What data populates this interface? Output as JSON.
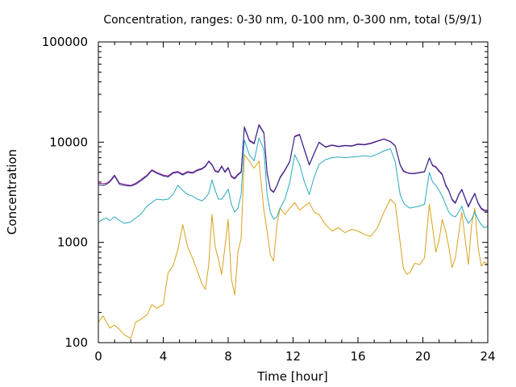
{
  "chart_data": {
    "type": "line",
    "title": "Concentration, ranges: 0-30 nm, 0-100 nm, 0-300 nm, total (5/9/1)",
    "xlabel": "Time [hour]",
    "ylabel": "Concentration",
    "xlim": [
      0,
      24
    ],
    "ylim": [
      100,
      100000
    ],
    "yscale": "log",
    "grid": false,
    "legend": "none",
    "x_ticks": [
      0,
      4,
      8,
      12,
      16,
      20,
      24
    ],
    "x_tick_labels": [
      "0",
      "4",
      "8",
      "12",
      "16",
      "20",
      "24"
    ],
    "y_ticks": [
      100,
      1000,
      10000,
      100000
    ],
    "y_tick_labels": [
      "100",
      "1000",
      "10000",
      "100000"
    ],
    "series": [
      {
        "color": "#d9a21a",
        "x": [
          0,
          0.3,
          0.5,
          0.7,
          1.0,
          1.3,
          1.6,
          2.0,
          2.3,
          2.6,
          3.0,
          3.3,
          3.6,
          4.0,
          4.3,
          4.6,
          4.9,
          5.2,
          5.5,
          5.8,
          6.1,
          6.4,
          6.6,
          6.8,
          7.0,
          7.2,
          7.4,
          7.6,
          7.8,
          8.0,
          8.2,
          8.4,
          8.6,
          8.8,
          9.0,
          9.3,
          9.6,
          9.9,
          10.2,
          10.4,
          10.6,
          10.8,
          11.0,
          11.2,
          11.5,
          11.8,
          12.1,
          12.4,
          12.7,
          13.0,
          13.3,
          13.6,
          14.0,
          14.4,
          14.8,
          15.2,
          15.6,
          16.0,
          16.4,
          16.8,
          17.2,
          17.6,
          18.0,
          18.3,
          18.6,
          18.8,
          19.0,
          19.2,
          19.5,
          19.8,
          20.1,
          20.4,
          20.6,
          20.8,
          21.0,
          21.2,
          21.4,
          21.6,
          21.8,
          22.0,
          22.2,
          22.4,
          22.6,
          22.8,
          23.0,
          23.2,
          23.4,
          23.6,
          23.8,
          24.0
        ],
        "values": [
          160,
          185,
          160,
          140,
          150,
          135,
          120,
          110,
          160,
          170,
          190,
          240,
          220,
          240,
          500,
          580,
          850,
          1500,
          900,
          700,
          520,
          380,
          340,
          600,
          1900,
          900,
          680,
          480,
          900,
          1700,
          430,
          300,
          800,
          1100,
          7500,
          6500,
          5500,
          6500,
          2100,
          1300,
          750,
          650,
          1500,
          2200,
          1900,
          2200,
          2500,
          2100,
          2300,
          2500,
          2000,
          1900,
          1500,
          1300,
          1400,
          1250,
          1350,
          1300,
          1200,
          1150,
          1400,
          2000,
          2700,
          2400,
          1000,
          550,
          480,
          500,
          620,
          600,
          700,
          2400,
          1400,
          800,
          1050,
          1700,
          1300,
          900,
          560,
          700,
          1200,
          2000,
          1100,
          600,
          1500,
          2200,
          900,
          580,
          640,
          600
        ]
      },
      {
        "color": "#2aa8c0",
        "x": [
          0,
          0.3,
          0.5,
          0.7,
          1.0,
          1.3,
          1.6,
          2.0,
          2.3,
          2.6,
          3.0,
          3.3,
          3.6,
          4.0,
          4.3,
          4.6,
          4.9,
          5.2,
          5.5,
          5.8,
          6.1,
          6.4,
          6.6,
          6.8,
          7.0,
          7.2,
          7.4,
          7.6,
          7.8,
          8.0,
          8.2,
          8.4,
          8.6,
          8.8,
          9.0,
          9.3,
          9.6,
          9.9,
          10.2,
          10.4,
          10.6,
          10.8,
          11.0,
          11.2,
          11.5,
          11.8,
          12.1,
          12.4,
          12.7,
          13.0,
          13.3,
          13.6,
          14.0,
          14.4,
          14.8,
          15.2,
          15.6,
          16.0,
          16.4,
          16.8,
          17.2,
          17.6,
          18.0,
          18.3,
          18.6,
          18.8,
          19.0,
          19.2,
          19.5,
          19.8,
          20.1,
          20.4,
          20.6,
          20.8,
          21.0,
          21.2,
          21.4,
          21.6,
          21.8,
          22.0,
          22.2,
          22.4,
          22.6,
          22.8,
          23.0,
          23.2,
          23.4,
          23.6,
          23.8,
          24.0
        ],
        "values": [
          1600,
          1700,
          1750,
          1650,
          1800,
          1650,
          1550,
          1600,
          1750,
          1900,
          2300,
          2500,
          2700,
          2650,
          2700,
          3000,
          3700,
          3300,
          3000,
          2900,
          2700,
          2600,
          2800,
          3100,
          4200,
          3300,
          2700,
          2700,
          3000,
          3400,
          2400,
          2000,
          2200,
          3000,
          10500,
          7500,
          6500,
          11000,
          8500,
          3000,
          2000,
          1700,
          1800,
          2200,
          2700,
          4000,
          7500,
          6000,
          4000,
          3000,
          4500,
          6000,
          6700,
          7000,
          7100,
          7000,
          7100,
          7200,
          7300,
          7200,
          7600,
          8200,
          8600,
          6300,
          3000,
          2500,
          2300,
          2200,
          2250,
          2300,
          2400,
          5000,
          4000,
          3700,
          3300,
          2900,
          2400,
          2000,
          1850,
          1800,
          2000,
          2300,
          1800,
          1550,
          1700,
          2000,
          1700,
          1500,
          1400,
          1450
        ]
      },
      {
        "color": "#8b1a8b",
        "x": [
          0,
          0.3,
          0.5,
          0.7,
          1.0,
          1.3,
          1.6,
          2.0,
          2.3,
          2.6,
          3.0,
          3.3,
          3.6,
          4.0,
          4.3,
          4.6,
          4.9,
          5.2,
          5.5,
          5.8,
          6.1,
          6.4,
          6.6,
          6.8,
          7.0,
          7.2,
          7.4,
          7.6,
          7.8,
          8.0,
          8.2,
          8.4,
          8.6,
          8.8,
          9.0,
          9.3,
          9.6,
          9.9,
          10.2,
          10.4,
          10.6,
          10.8,
          11.0,
          11.2,
          11.5,
          11.8,
          12.1,
          12.4,
          12.7,
          13.0,
          13.3,
          13.6,
          14.0,
          14.4,
          14.8,
          15.2,
          15.6,
          16.0,
          16.4,
          16.8,
          17.2,
          17.6,
          18.0,
          18.3,
          18.6,
          18.8,
          19.0,
          19.2,
          19.5,
          19.8,
          20.1,
          20.4,
          20.6,
          20.8,
          21.0,
          21.2,
          21.4,
          21.6,
          21.8,
          22.0,
          22.2,
          22.4,
          22.6,
          22.8,
          23.0,
          23.2,
          23.4,
          23.6,
          23.8,
          24.0
        ],
        "values": [
          3900,
          3850,
          3900,
          4100,
          4700,
          3900,
          3800,
          3700,
          3900,
          4200,
          4700,
          5300,
          5000,
          4700,
          4600,
          5000,
          5100,
          4800,
          5100,
          5000,
          5300,
          5500,
          5800,
          6500,
          6000,
          5200,
          5100,
          5800,
          5100,
          5600,
          4600,
          4400,
          4800,
          5100,
          14300,
          10500,
          9800,
          15000,
          12500,
          5000,
          3400,
          3200,
          3700,
          4500,
          5300,
          6500,
          11500,
          12000,
          8500,
          6000,
          7800,
          10000,
          9000,
          9400,
          9100,
          9300,
          9200,
          9600,
          9500,
          9800,
          10300,
          10800,
          10200,
          9200,
          6000,
          5200,
          5000,
          4900,
          4900,
          5000,
          5100,
          7000,
          5900,
          5700,
          5200,
          4800,
          3800,
          3300,
          2700,
          2500,
          3000,
          3400,
          2800,
          2300,
          2700,
          3100,
          2500,
          2200,
          2100,
          2100
        ]
      },
      {
        "color": "#2a2a8c",
        "x": [
          0,
          0.3,
          0.5,
          0.7,
          1.0,
          1.3,
          1.6,
          2.0,
          2.3,
          2.6,
          3.0,
          3.3,
          3.6,
          4.0,
          4.3,
          4.6,
          4.9,
          5.2,
          5.5,
          5.8,
          6.1,
          6.4,
          6.6,
          6.8,
          7.0,
          7.2,
          7.4,
          7.6,
          7.8,
          8.0,
          8.2,
          8.4,
          8.6,
          8.8,
          9.0,
          9.3,
          9.6,
          9.9,
          10.2,
          10.4,
          10.6,
          10.8,
          11.0,
          11.2,
          11.5,
          11.8,
          12.1,
          12.4,
          12.7,
          13.0,
          13.3,
          13.6,
          14.0,
          14.4,
          14.8,
          15.2,
          15.6,
          16.0,
          16.4,
          16.8,
          17.2,
          17.6,
          18.0,
          18.3,
          18.6,
          18.8,
          19.0,
          19.2,
          19.5,
          19.8,
          20.1,
          20.4,
          20.6,
          20.8,
          21.0,
          21.2,
          21.4,
          21.6,
          21.8,
          22.0,
          22.2,
          22.4,
          22.6,
          22.8,
          23.0,
          23.2,
          23.4,
          23.6,
          23.8,
          24.0
        ],
        "values": [
          3750,
          3700,
          3800,
          4000,
          4600,
          3800,
          3700,
          3650,
          3800,
          4100,
          4600,
          5200,
          4900,
          4600,
          4500,
          4900,
          5000,
          4700,
          5000,
          4900,
          5200,
          5400,
          5700,
          6400,
          5900,
          5100,
          5000,
          5700,
          5000,
          5500,
          4500,
          4300,
          4700,
          5000,
          14000,
          10300,
          9600,
          14700,
          12300,
          4900,
          3350,
          3150,
          3650,
          4400,
          5200,
          6400,
          11300,
          11800,
          8300,
          5900,
          7700,
          9900,
          8900,
          9300,
          9000,
          9200,
          9100,
          9500,
          9400,
          9700,
          10200,
          10700,
          10100,
          9100,
          5900,
          5100,
          4950,
          4850,
          4850,
          4950,
          5050,
          6900,
          5800,
          5600,
          5100,
          4700,
          3700,
          3250,
          2650,
          2450,
          2950,
          3350,
          2750,
          2250,
          2650,
          3050,
          2450,
          2150,
          2050,
          2050
        ]
      }
    ]
  }
}
